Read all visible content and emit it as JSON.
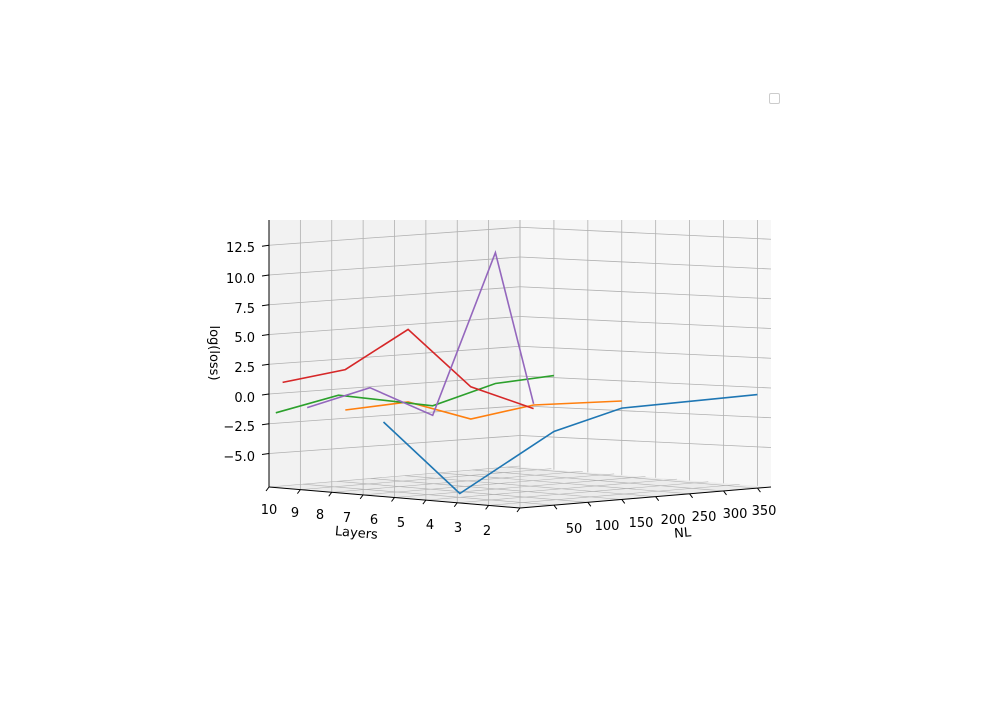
{
  "chart_data": {
    "type": "line",
    "projection": "3d",
    "title": "",
    "xlabel": "Layers",
    "ylabel": "NL",
    "zlabel": "log(loss)",
    "x_ticks": [
      "10",
      "9",
      "8",
      "7",
      "6",
      "5",
      "4",
      "3",
      "2"
    ],
    "y_ticks": [
      "50",
      "100",
      "150",
      "200",
      "250",
      "300",
      "350"
    ],
    "z_ticks": [
      "12.5",
      "10.0",
      "7.5",
      "5.0",
      "2.5",
      "0.0",
      "−2.5",
      "−5.0"
    ],
    "grid": true,
    "legend": "top-right (empty)",
    "series": [
      {
        "color": "#1f77b4",
        "points": [
          [
            7,
            30,
            -1.4
          ],
          [
            5,
            50,
            -7.0
          ],
          [
            2,
            50,
            -1.0
          ],
          [
            2,
            150,
            0.4
          ],
          [
            2,
            350,
            0.4
          ]
        ]
      },
      {
        "color": "#ff7f0e",
        "points": [
          [
            8,
            20,
            -0.6
          ],
          [
            6,
            20,
            0.6
          ],
          [
            4,
            20,
            -0.3
          ],
          [
            2,
            20,
            1.4
          ],
          [
            2,
            150,
            1.0
          ]
        ]
      },
      {
        "color": "#2ca02c",
        "points": [
          [
            10,
            10,
            -1.3
          ],
          [
            8,
            10,
            0.7
          ],
          [
            5,
            10,
            0.6
          ],
          [
            3,
            10,
            3.0
          ],
          [
            2,
            50,
            3.7
          ]
        ]
      },
      {
        "color": "#d62728",
        "points": [
          [
            10,
            20,
            1.2
          ],
          [
            8,
            20,
            2.8
          ],
          [
            6,
            20,
            6.7
          ],
          [
            4,
            20,
            2.4
          ],
          [
            2,
            20,
            1.1
          ]
        ]
      },
      {
        "color": "#9467bd",
        "points": [
          [
            9,
            10,
            -0.6
          ],
          [
            7,
            10,
            1.6
          ],
          [
            5,
            10,
            -0.2
          ],
          [
            3,
            10,
            14.0
          ],
          [
            2,
            20,
            1.5
          ]
        ]
      }
    ]
  }
}
